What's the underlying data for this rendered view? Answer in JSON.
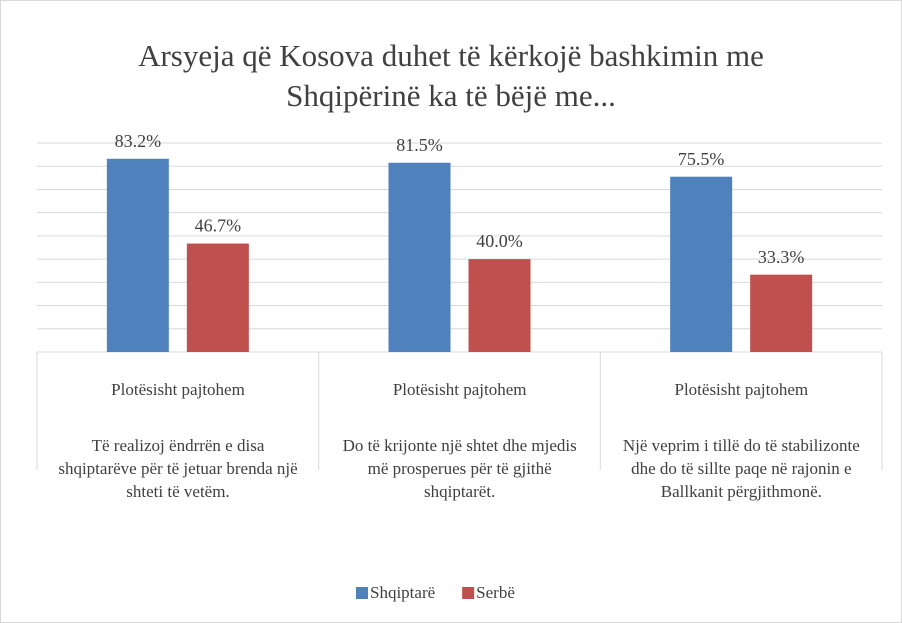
{
  "chart_data": {
    "type": "bar",
    "title": "Arsyeja që Kosova duhet të kërkojë bashkimin me Shqipërinë ka të bëjë me...",
    "categories": [
      "Plotësisht pajtohem",
      "Plotësisht pajtohem",
      "Plotësisht pajtohem"
    ],
    "category_groups": [
      "Të realizoj ëndrrën e disa shqiptarëve për të jetuar brenda një shteti të vetëm.",
      "Do të krijonte një shtet dhe mjedis më prosperues për të gjithë shqiptarët.",
      "Një veprim i tillë do të stabilizonte dhe do të sillte paqe në rajonin e Ballkanit përgjithmonë."
    ],
    "series": [
      {
        "name": "Shqiptarë",
        "color": "#4f81bd",
        "values": [
          83.2,
          81.5,
          75.5
        ],
        "value_labels": [
          "83.2%",
          "81.5%",
          "75.5%"
        ]
      },
      {
        "name": "Serbë",
        "color": "#c0504d",
        "values": [
          46.7,
          40.0,
          33.3
        ],
        "value_labels": [
          "46.7%",
          "40.0%",
          "33.3%"
        ]
      }
    ],
    "ylim": [
      0,
      90
    ],
    "yticks": [
      0,
      10,
      20,
      30,
      40,
      50,
      60,
      70,
      80,
      90
    ],
    "grid": true,
    "legend": "bottom"
  }
}
